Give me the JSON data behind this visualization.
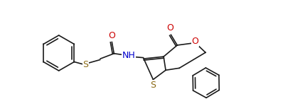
{
  "bg_color": "#ffffff",
  "line_color": "#1a1a1a",
  "atom_colors": {
    "O": "#cc0000",
    "N": "#0000cc",
    "S": "#8b6914",
    "H": "#1a1a1a"
  },
  "figsize": [
    3.98,
    1.5
  ],
  "dpi": 100
}
